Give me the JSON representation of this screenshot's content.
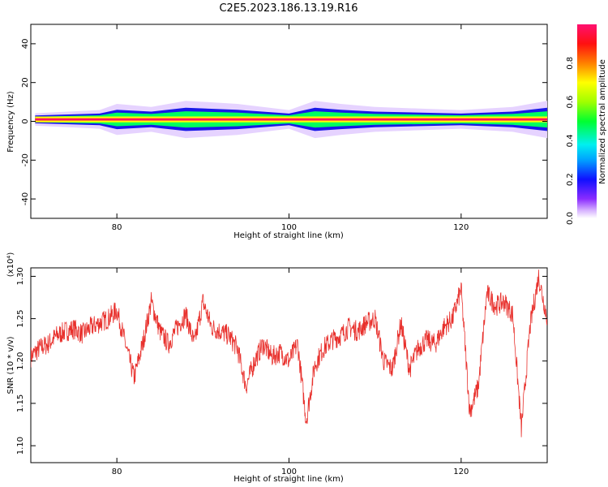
{
  "chart_data": [
    {
      "type": "heatmap",
      "title": "C2E5.2023.186.13.19.R16",
      "xlabel": "Height of straight line (km)",
      "ylabel": "Frequency (Hz)",
      "xlim": [
        70,
        130
      ],
      "ylim": [
        -50,
        50
      ],
      "xticks": [
        80,
        100,
        120
      ],
      "yticks": [
        -40,
        -20,
        0,
        20,
        40
      ],
      "colorbar": {
        "label": "Normalized spectral amplitude",
        "range": [
          0,
          1
        ],
        "ticks": [
          0.0,
          0.2,
          0.4,
          0.6,
          0.8
        ]
      },
      "band": {
        "center_hz": 1,
        "core_halfwidth_hz": 1.5,
        "envelope": [
          {
            "x": 70.5,
            "halfwidth_hz": 2
          },
          {
            "x": 78,
            "halfwidth_hz": 3
          },
          {
            "x": 80,
            "halfwidth_hz": 5
          },
          {
            "x": 84,
            "halfwidth_hz": 4
          },
          {
            "x": 88,
            "halfwidth_hz": 6
          },
          {
            "x": 94,
            "halfwidth_hz": 5
          },
          {
            "x": 100,
            "halfwidth_hz": 3
          },
          {
            "x": 103,
            "halfwidth_hz": 6
          },
          {
            "x": 106,
            "halfwidth_hz": 5
          },
          {
            "x": 110,
            "halfwidth_hz": 4
          },
          {
            "x": 120,
            "halfwidth_hz": 3
          },
          {
            "x": 126,
            "halfwidth_hz": 4
          },
          {
            "x": 130,
            "halfwidth_hz": 6
          }
        ]
      }
    },
    {
      "type": "line",
      "xlabel": "Height of straight line (km)",
      "ylabel": "SNR (10 * v/v)",
      "exponent_label": "(x10⁴)",
      "xlim": [
        70,
        130
      ],
      "ylim": [
        1.08,
        1.31
      ],
      "xticks": [
        80,
        100,
        120
      ],
      "yticks": [
        1.1,
        1.15,
        1.2,
        1.25,
        1.3
      ],
      "ytick_labels": [
        "1.10",
        "1.15",
        "1.20",
        "1.25",
        "1.30"
      ],
      "series": [
        {
          "color": "#e8302c",
          "x": [
            70,
            71,
            72,
            73,
            74,
            75,
            76,
            77,
            78,
            79,
            80,
            81,
            82,
            83,
            84,
            85,
            86,
            87,
            88,
            89,
            90,
            91,
            92,
            93,
            94,
            95,
            96,
            97,
            98,
            99,
            100,
            101,
            102,
            103,
            104,
            105,
            106,
            107,
            108,
            109,
            110,
            111,
            112,
            113,
            114,
            115,
            116,
            117,
            118,
            119,
            120,
            121,
            122,
            123,
            124,
            125,
            126,
            127,
            128,
            129,
            130
          ],
          "values": [
            1.205,
            1.215,
            1.22,
            1.23,
            1.235,
            1.238,
            1.232,
            1.24,
            1.245,
            1.25,
            1.26,
            1.22,
            1.18,
            1.22,
            1.27,
            1.235,
            1.22,
            1.24,
            1.255,
            1.22,
            1.27,
            1.24,
            1.235,
            1.23,
            1.215,
            1.17,
            1.2,
            1.22,
            1.205,
            1.21,
            1.2,
            1.22,
            1.13,
            1.195,
            1.215,
            1.225,
            1.23,
            1.24,
            1.235,
            1.245,
            1.25,
            1.2,
            1.19,
            1.245,
            1.19,
            1.215,
            1.225,
            1.22,
            1.24,
            1.25,
            1.285,
            1.14,
            1.17,
            1.28,
            1.265,
            1.27,
            1.255,
            1.12,
            1.24,
            1.3,
            1.25
          ]
        }
      ]
    }
  ]
}
